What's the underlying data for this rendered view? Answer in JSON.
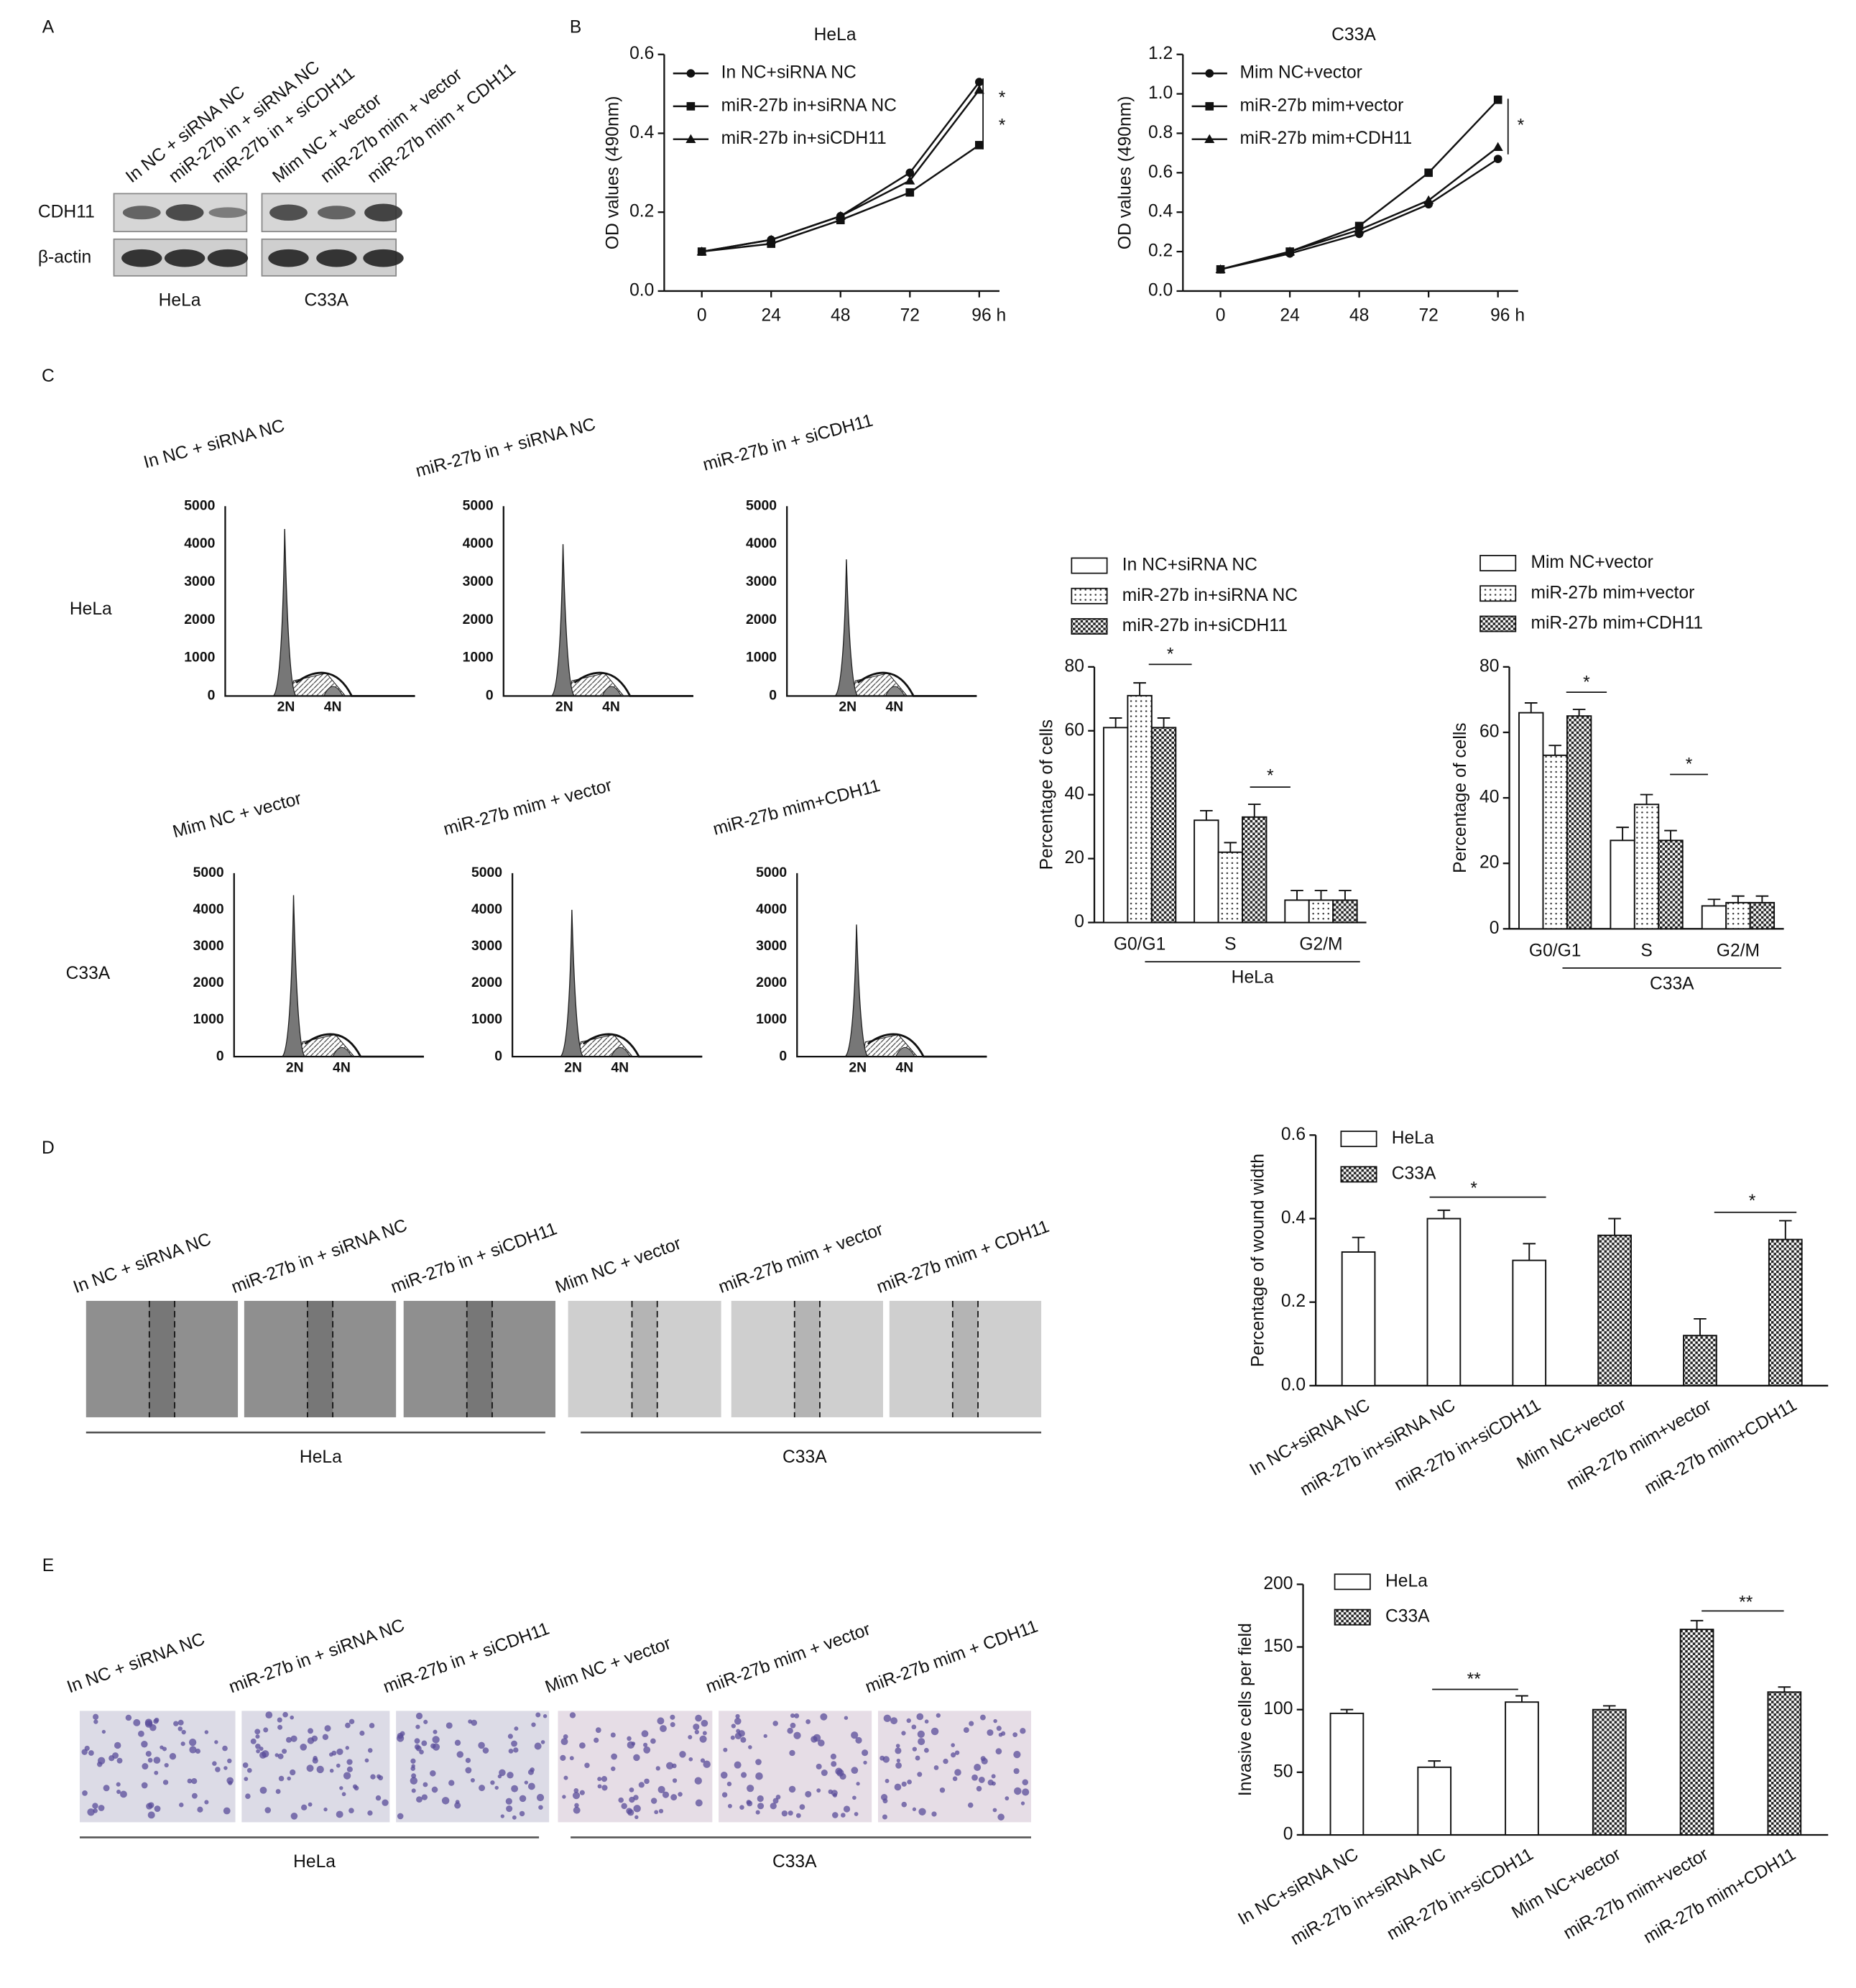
{
  "panel_labels": [
    "A",
    "B",
    "C",
    "D",
    "E"
  ],
  "blot": {
    "lanes": [
      "In NC + siRNA NC",
      "miR-27b in + siRNA NC",
      "miR-27b in + siCDH11",
      "Mim NC + vector",
      "miR-27b mim + vector",
      "miR-27b mim + CDH11"
    ],
    "rows": [
      "CDH11",
      "β-actin"
    ],
    "cells": [
      "HeLa",
      "C33A"
    ]
  },
  "flow": {
    "rows": [
      "HeLa",
      "C33A"
    ],
    "titles": [
      [
        "In NC + siRNA NC",
        "miR-27b in + siRNA  NC",
        "miR-27b in + siCDH11"
      ],
      [
        "Mim NC + vector",
        "miR-27b mim + vector",
        "miR-27b mim+CDH11"
      ]
    ],
    "yticks": [
      "0",
      "1000",
      "2000",
      "3000",
      "4000",
      "5000"
    ],
    "xlabels": [
      "2N",
      "4N"
    ]
  },
  "wound": {
    "titles": [
      "In NC + siRNA NC",
      "miR-27b in + siRNA  NC",
      "miR-27b in + siCDH11",
      "Mim NC + vector",
      "miR-27b mim + vector",
      "miR-27b mim + CDH11"
    ],
    "cells": [
      "HeLa",
      "C33A"
    ]
  },
  "invasion": {
    "titles": [
      "In NC + siRNA NC",
      "miR-27b in + siRNA  NC",
      "miR-27b in + siCDH11",
      "Mim NC + vector",
      "miR-27b mim + vector",
      "miR-27b mim + CDH11"
    ],
    "cells": [
      "HeLa",
      "C33A"
    ]
  },
  "chart_data": [
    {
      "type": "line",
      "title": "HeLa",
      "y_label": "OD values (490nm)",
      "x": [
        0,
        24,
        48,
        72,
        96
      ],
      "xlim": [
        -13,
        103
      ],
      "xticks": [
        0,
        24,
        48,
        72,
        {
          "value": 96,
          "label": "96 h"
        }
      ],
      "ylim": [
        0,
        0.6
      ],
      "yticks": [
        {
          "value": 0,
          "label": "0.0"
        },
        0.2,
        0.4,
        0.6
      ],
      "series": [
        {
          "name": "In NC+siRNA NC",
          "marker": "circle",
          "color": "#111111",
          "values": [
            0.1,
            0.13,
            0.19,
            0.3,
            0.53
          ]
        },
        {
          "name": "miR-27b in+siRNA NC",
          "marker": "square",
          "color": "#111111",
          "values": [
            0.1,
            0.12,
            0.18,
            0.25,
            0.37
          ]
        },
        {
          "name": "miR-27b in+siCDH11",
          "marker": "triangle",
          "color": "#111111",
          "values": [
            0.1,
            0.13,
            0.19,
            0.28,
            0.51
          ]
        }
      ],
      "annotations": [
        "*",
        "*"
      ]
    },
    {
      "type": "line",
      "title": "C33A",
      "y_label": "OD values (490nm)",
      "x": [
        0,
        24,
        48,
        72,
        96
      ],
      "xlim": [
        -13,
        103
      ],
      "xticks": [
        0,
        24,
        48,
        72,
        {
          "value": 96,
          "label": "96 h"
        }
      ],
      "ylim": [
        0,
        1.2
      ],
      "yticks": [
        {
          "value": 0,
          "label": "0.0"
        },
        0.2,
        0.4,
        0.6,
        0.8,
        {
          "value": 1,
          "label": "1.0"
        },
        1.2
      ],
      "series": [
        {
          "name": "Mim NC+vector",
          "marker": "circle",
          "color": "#111111",
          "values": [
            0.11,
            0.19,
            0.29,
            0.44,
            0.67
          ]
        },
        {
          "name": "miR-27b mim+vector",
          "marker": "square",
          "color": "#111111",
          "values": [
            0.11,
            0.2,
            0.33,
            0.6,
            0.97
          ]
        },
        {
          "name": "miR-27b mim+CDH11",
          "marker": "triangle",
          "color": "#111111",
          "values": [
            0.11,
            0.2,
            0.31,
            0.46,
            0.73
          ]
        }
      ],
      "annotations": [
        "*"
      ]
    },
    {
      "type": "bar",
      "y_label": "Percentage of cells",
      "group_label": "HeLa",
      "categories": [
        "G0/G1",
        "S",
        "G2/M"
      ],
      "ylim": [
        0,
        80
      ],
      "yticks": [
        0,
        20,
        40,
        60,
        80
      ],
      "series": [
        {
          "name": "In NC+siRNA NC",
          "pattern": "none",
          "values": [
            61,
            32,
            7
          ],
          "errors": [
            3,
            3,
            3
          ]
        },
        {
          "name": "miR-27b in+siRNA NC",
          "pattern": "dots",
          "values": [
            71,
            22,
            7
          ],
          "errors": [
            4,
            3,
            3
          ]
        },
        {
          "name": "miR-27b in+siCDH11",
          "pattern": "checker",
          "values": [
            61,
            33,
            7
          ],
          "errors": [
            3,
            4,
            3
          ]
        }
      ],
      "annotations": [
        "*",
        "*"
      ]
    },
    {
      "type": "bar",
      "y_label": "Percentage of cells",
      "group_label": "C33A",
      "categories": [
        "G0/G1",
        "S",
        "G2/M"
      ],
      "ylim": [
        0,
        80
      ],
      "yticks": [
        0,
        20,
        40,
        60,
        80
      ],
      "series": [
        {
          "name": "Mim NC+vector",
          "pattern": "none",
          "values": [
            66,
            27,
            7
          ],
          "errors": [
            3,
            4,
            2
          ]
        },
        {
          "name": "miR-27b mim+vector",
          "pattern": "dots",
          "values": [
            53,
            38,
            8
          ],
          "errors": [
            3,
            3,
            2
          ]
        },
        {
          "name": "miR-27b mim+CDH11",
          "pattern": "checker",
          "values": [
            65,
            27,
            8
          ],
          "errors": [
            2,
            3,
            2
          ]
        }
      ],
      "annotations": [
        "*",
        "*"
      ]
    },
    {
      "type": "bar",
      "y_label": "Percentage of wound width",
      "categories": [
        "In NC+siRNA NC",
        "miR-27b in+siRNA NC",
        "miR-27b in+siCDH11",
        "Mim NC+vector",
        "miR-27b mim+vector",
        "miR-27b mim+CDH11"
      ],
      "ylim": [
        0,
        0.6
      ],
      "yticks": [
        {
          "value": 0,
          "label": "0.0"
        },
        0.2,
        0.4,
        0.6
      ],
      "series": [
        {
          "name": "HeLa",
          "pattern": "none",
          "values": [
            0.32,
            0.4,
            0.3,
            null,
            null,
            null
          ],
          "errors": [
            0.035,
            0.02,
            0.04,
            null,
            null,
            null
          ]
        },
        {
          "name": "C33A",
          "pattern": "checker",
          "values": [
            null,
            null,
            null,
            0.36,
            0.12,
            0.35
          ],
          "errors": [
            null,
            null,
            null,
            0.04,
            0.04,
            0.045
          ]
        }
      ],
      "annotations": [
        "*",
        "*"
      ]
    },
    {
      "type": "bar",
      "y_label": "Invasive cells per field",
      "categories": [
        "In NC+siRNA NC",
        "miR-27b in+siRNA NC",
        "miR-27b in+siCDH11",
        "Mim NC+vector",
        "miR-27b mim+vector",
        "miR-27b mim+CDH11"
      ],
      "ylim": [
        0,
        200
      ],
      "yticks": [
        0,
        50,
        100,
        150,
        200
      ],
      "series": [
        {
          "name": "HeLa",
          "pattern": "none",
          "values": [
            97,
            54,
            106,
            null,
            null,
            null
          ],
          "errors": [
            3,
            5,
            5,
            null,
            null,
            null
          ]
        },
        {
          "name": "C33A",
          "pattern": "checker",
          "values": [
            null,
            null,
            null,
            100,
            164,
            114
          ],
          "errors": [
            null,
            null,
            null,
            3,
            7,
            4
          ]
        }
      ],
      "annotations": [
        "**",
        "**"
      ]
    }
  ]
}
